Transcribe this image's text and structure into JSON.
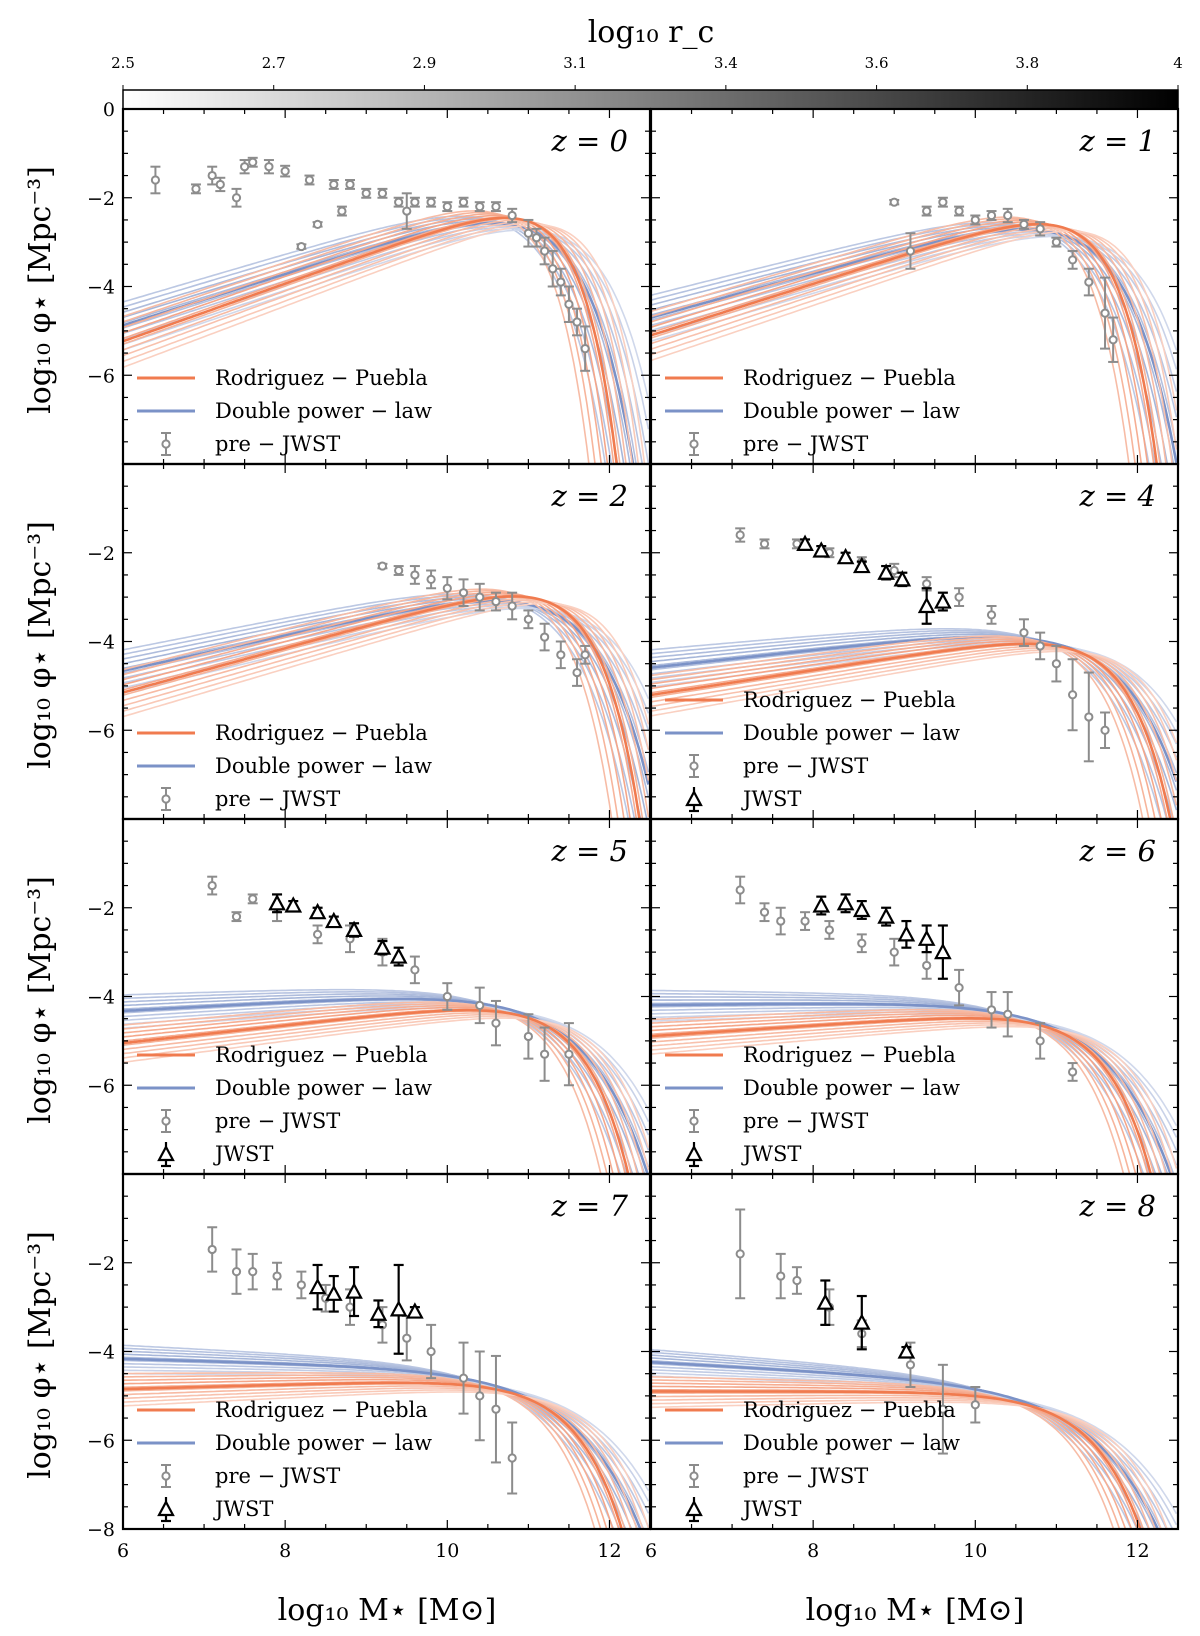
{
  "figure": {
    "colorbar": {
      "label": "log₁₀ r_c",
      "min": 2.5,
      "max": 4.0,
      "ticks": [
        "2.5",
        "2.7",
        "2.9",
        "3.1",
        "3.4",
        "3.6",
        "3.8",
        "4"
      ],
      "tick_values": [
        2.5,
        2.7,
        2.9,
        3.1,
        3.4,
        3.6,
        3.8,
        4.0
      ],
      "gradient": [
        "#ffffff",
        "#000000"
      ]
    },
    "colors": {
      "rodriguez_puebla": "#f07b4f",
      "double_power_law": "#7b92c7",
      "pre_jwst": "#8c8c8c",
      "jwst": "#000000"
    },
    "xlabel": "log₁₀ M⋆ [M⊙]",
    "ylabel": "log₁₀ φ⋆ [Mpc⁻³]",
    "xlim": [
      6,
      12.5
    ],
    "ylim": [
      -8,
      0
    ],
    "x_ticks": [
      "6",
      "8",
      "10",
      "12"
    ],
    "y_ticks_top": [
      "0",
      "−2",
      "−4",
      "−6"
    ],
    "y_ticks": [
      "−2",
      "−4",
      "−6"
    ],
    "y_ticks_bottom": [
      "−2",
      "−4",
      "−6",
      "−8"
    ],
    "legend": {
      "rp": "Rodriguez − Puebla",
      "dpl": "Double power − law",
      "pre": "pre − JWST",
      "jwst": "JWST"
    }
  },
  "chart_data": [
    {
      "type": "line",
      "redshift_label": "z = 0",
      "z": 0,
      "legend_entries": [
        "Rodriguez − Puebla",
        "Double power − law",
        "pre − JWST"
      ],
      "rp_model": {
        "alpha": -0.35,
        "log_mstar": 10.9,
        "log_phi": -2.05,
        "beta": 1.0
      },
      "dpl_model": {
        "alpha": -0.42,
        "log_mstar": 10.7,
        "log_phi": -2.15,
        "beta": 0.75
      },
      "pre_jwst": [
        [
          6.4,
          -1.6,
          0.3
        ],
        [
          6.9,
          -1.8,
          0.1
        ],
        [
          7.1,
          -1.5,
          0.2
        ],
        [
          7.2,
          -1.7,
          0.15
        ],
        [
          7.4,
          -2.0,
          0.2
        ],
        [
          7.5,
          -1.3,
          0.15
        ],
        [
          7.6,
          -1.2,
          0.1
        ],
        [
          7.8,
          -1.3,
          0.15
        ],
        [
          8.0,
          -1.4,
          0.12
        ],
        [
          8.2,
          -3.1,
          0.05
        ],
        [
          8.3,
          -1.6,
          0.1
        ],
        [
          8.4,
          -2.6,
          0.05
        ],
        [
          8.6,
          -1.7,
          0.1
        ],
        [
          8.7,
          -2.3,
          0.1
        ],
        [
          8.8,
          -1.7,
          0.1
        ],
        [
          9.0,
          -1.9,
          0.1
        ],
        [
          9.2,
          -1.9,
          0.1
        ],
        [
          9.4,
          -2.1,
          0.1
        ],
        [
          9.5,
          -2.3,
          0.4
        ],
        [
          9.6,
          -2.1,
          0.1
        ],
        [
          9.8,
          -2.1,
          0.1
        ],
        [
          10.0,
          -2.2,
          0.1
        ],
        [
          10.2,
          -2.1,
          0.1
        ],
        [
          10.4,
          -2.2,
          0.1
        ],
        [
          10.6,
          -2.2,
          0.1
        ],
        [
          10.8,
          -2.4,
          0.15
        ],
        [
          11.0,
          -2.8,
          0.3
        ],
        [
          11.1,
          -2.9,
          0.2
        ],
        [
          11.2,
          -3.2,
          0.3
        ],
        [
          11.3,
          -3.6,
          0.4
        ],
        [
          11.4,
          -3.9,
          0.3
        ],
        [
          11.5,
          -4.4,
          0.4
        ],
        [
          11.6,
          -4.8,
          0.3
        ],
        [
          11.7,
          -5.4,
          0.5
        ]
      ]
    },
    {
      "type": "line",
      "redshift_label": "z = 1",
      "z": 1,
      "legend_entries": [
        "Rodriguez − Puebla",
        "Double power − law",
        "pre − JWST"
      ],
      "rp_model": {
        "alpha": -0.42,
        "log_mstar": 11.0,
        "log_phi": -2.2,
        "beta": 0.95
      },
      "dpl_model": {
        "alpha": -0.5,
        "log_mstar": 10.8,
        "log_phi": -2.3,
        "beta": 0.7
      },
      "pre_jwst": [
        [
          9.0,
          -2.1,
          0.05
        ],
        [
          9.2,
          -3.2,
          0.4
        ],
        [
          9.4,
          -2.3,
          0.1
        ],
        [
          9.6,
          -2.1,
          0.1
        ],
        [
          9.8,
          -2.3,
          0.1
        ],
        [
          10.0,
          -2.5,
          0.1
        ],
        [
          10.2,
          -2.4,
          0.1
        ],
        [
          10.4,
          -2.4,
          0.15
        ],
        [
          10.6,
          -2.6,
          0.1
        ],
        [
          10.8,
          -2.7,
          0.15
        ],
        [
          11.0,
          -3.0,
          0.1
        ],
        [
          11.2,
          -3.4,
          0.2
        ],
        [
          11.4,
          -3.9,
          0.3
        ],
        [
          11.6,
          -4.6,
          0.8
        ],
        [
          11.7,
          -5.2,
          0.5
        ]
      ]
    },
    {
      "type": "line",
      "redshift_label": "z = 2",
      "z": 2,
      "legend_entries": [
        "Rodriguez − Puebla",
        "Double power − law",
        "pre − JWST"
      ],
      "rp_model": {
        "alpha": -0.5,
        "log_mstar": 11.1,
        "log_phi": -2.6,
        "beta": 0.9
      },
      "dpl_model": {
        "alpha": -0.6,
        "log_mstar": 10.9,
        "log_phi": -2.7,
        "beta": 0.68
      },
      "pre_jwst": [
        [
          9.2,
          -2.3,
          0.05
        ],
        [
          9.4,
          -2.4,
          0.1
        ],
        [
          9.6,
          -2.5,
          0.2
        ],
        [
          9.8,
          -2.6,
          0.2
        ],
        [
          10.0,
          -2.8,
          0.25
        ],
        [
          10.2,
          -2.9,
          0.3
        ],
        [
          10.4,
          -3.0,
          0.3
        ],
        [
          10.6,
          -3.1,
          0.2
        ],
        [
          10.8,
          -3.2,
          0.3
        ],
        [
          11.0,
          -3.5,
          0.2
        ],
        [
          11.2,
          -3.9,
          0.3
        ],
        [
          11.4,
          -4.3,
          0.3
        ],
        [
          11.6,
          -4.7,
          0.3
        ],
        [
          11.7,
          -4.3,
          0.2
        ]
      ]
    },
    {
      "type": "line",
      "redshift_label": "z = 4",
      "z": 4,
      "legend_entries": [
        "Rodriguez − Puebla",
        "Double power − law",
        "pre − JWST",
        "JWST"
      ],
      "rp_model": {
        "alpha": -0.72,
        "log_mstar": 11.2,
        "log_phi": -3.75,
        "beta": 0.85
      },
      "dpl_model": {
        "alpha": -0.8,
        "log_mstar": 10.95,
        "log_phi": -3.6,
        "beta": 0.62
      },
      "pre_jwst": [
        [
          7.1,
          -1.6,
          0.15
        ],
        [
          7.4,
          -1.8,
          0.1
        ],
        [
          7.8,
          -1.8,
          0.1
        ],
        [
          8.2,
          -2.0,
          0.1
        ],
        [
          8.6,
          -2.2,
          0.1
        ],
        [
          9.0,
          -2.4,
          0.15
        ],
        [
          9.4,
          -2.7,
          0.15
        ],
        [
          9.8,
          -3.0,
          0.2
        ],
        [
          10.2,
          -3.4,
          0.2
        ],
        [
          10.6,
          -3.8,
          0.3
        ],
        [
          10.8,
          -4.1,
          0.3
        ],
        [
          11.0,
          -4.5,
          0.4
        ],
        [
          11.2,
          -5.2,
          0.8
        ],
        [
          11.4,
          -5.7,
          1.0
        ],
        [
          11.6,
          -6.0,
          0.4
        ]
      ],
      "jwst": [
        [
          7.9,
          -1.8,
          0.1
        ],
        [
          8.1,
          -1.95,
          0.1
        ],
        [
          8.4,
          -2.1,
          0.1
        ],
        [
          8.6,
          -2.3,
          0.1
        ],
        [
          8.9,
          -2.45,
          0.15
        ],
        [
          9.1,
          -2.6,
          0.15
        ],
        [
          9.4,
          -3.2,
          0.4
        ],
        [
          9.6,
          -3.1,
          0.2
        ]
      ]
    },
    {
      "type": "line",
      "redshift_label": "z = 5",
      "z": 5,
      "legend_entries": [
        "Rodriguez − Puebla",
        "Double power − law",
        "pre − JWST",
        "JWST"
      ],
      "rp_model": {
        "alpha": -0.8,
        "log_mstar": 11.0,
        "log_phi": -4.05,
        "beta": 0.8
      },
      "dpl_model": {
        "alpha": -0.9,
        "log_mstar": 10.75,
        "log_phi": -3.85,
        "beta": 0.58
      },
      "pre_jwst": [
        [
          7.1,
          -1.5,
          0.2
        ],
        [
          7.4,
          -2.2,
          0.1
        ],
        [
          7.6,
          -1.8,
          0.1
        ],
        [
          7.9,
          -2.0,
          0.3
        ],
        [
          8.4,
          -2.6,
          0.2
        ],
        [
          8.8,
          -2.7,
          0.3
        ],
        [
          9.2,
          -3.0,
          0.3
        ],
        [
          9.6,
          -3.4,
          0.3
        ],
        [
          10.0,
          -4.0,
          0.3
        ],
        [
          10.4,
          -4.2,
          0.4
        ],
        [
          10.6,
          -4.6,
          0.5
        ],
        [
          11.0,
          -4.9,
          0.5
        ],
        [
          11.2,
          -5.3,
          0.6
        ],
        [
          11.5,
          -5.3,
          0.7
        ]
      ],
      "jwst": [
        [
          7.9,
          -1.9,
          0.2
        ],
        [
          8.1,
          -1.95,
          0.1
        ],
        [
          8.4,
          -2.1,
          0.1
        ],
        [
          8.6,
          -2.3,
          0.1
        ],
        [
          8.85,
          -2.5,
          0.15
        ],
        [
          9.2,
          -2.9,
          0.15
        ],
        [
          9.4,
          -3.1,
          0.2
        ]
      ]
    },
    {
      "type": "line",
      "redshift_label": "z = 6",
      "z": 6,
      "legend_entries": [
        "Rodriguez − Puebla",
        "Double power − law",
        "pre − JWST",
        "JWST"
      ],
      "rp_model": {
        "alpha": -0.88,
        "log_mstar": 10.95,
        "log_phi": -4.3,
        "beta": 0.78
      },
      "dpl_model": {
        "alpha": -0.98,
        "log_mstar": 10.7,
        "log_phi": -4.1,
        "beta": 0.56
      },
      "pre_jwst": [
        [
          7.1,
          -1.6,
          0.3
        ],
        [
          7.4,
          -2.1,
          0.2
        ],
        [
          7.6,
          -2.3,
          0.3
        ],
        [
          7.9,
          -2.3,
          0.2
        ],
        [
          8.2,
          -2.5,
          0.2
        ],
        [
          8.6,
          -2.8,
          0.2
        ],
        [
          9.0,
          -3.0,
          0.3
        ],
        [
          9.4,
          -3.3,
          0.3
        ],
        [
          9.8,
          -3.8,
          0.4
        ],
        [
          10.2,
          -4.3,
          0.4
        ],
        [
          10.4,
          -4.4,
          0.5
        ],
        [
          10.8,
          -5.0,
          0.4
        ],
        [
          11.2,
          -5.7,
          0.2
        ]
      ],
      "jwst": [
        [
          8.1,
          -1.95,
          0.2
        ],
        [
          8.4,
          -1.9,
          0.2
        ],
        [
          8.6,
          -2.05,
          0.2
        ],
        [
          8.9,
          -2.2,
          0.2
        ],
        [
          9.15,
          -2.6,
          0.3
        ],
        [
          9.4,
          -2.7,
          0.3
        ],
        [
          9.6,
          -3.0,
          0.6
        ]
      ]
    },
    {
      "type": "line",
      "redshift_label": "z = 7",
      "z": 7,
      "legend_entries": [
        "Rodriguez − Puebla",
        "Double power − law",
        "pre − JWST",
        "JWST"
      ],
      "rp_model": {
        "alpha": -0.95,
        "log_mstar": 10.95,
        "log_phi": -4.6,
        "beta": 0.75
      },
      "dpl_model": {
        "alpha": -1.05,
        "log_mstar": 10.7,
        "log_phi": -4.4,
        "beta": 0.54
      },
      "pre_jwst": [
        [
          7.1,
          -1.7,
          0.5
        ],
        [
          7.4,
          -2.2,
          0.5
        ],
        [
          7.6,
          -2.2,
          0.4
        ],
        [
          7.9,
          -2.3,
          0.3
        ],
        [
          8.2,
          -2.5,
          0.3
        ],
        [
          8.5,
          -2.8,
          0.3
        ],
        [
          8.8,
          -3.0,
          0.4
        ],
        [
          9.2,
          -3.4,
          0.4
        ],
        [
          9.5,
          -3.7,
          0.5
        ],
        [
          9.8,
          -4.0,
          0.6
        ],
        [
          10.2,
          -4.6,
          0.8
        ],
        [
          10.4,
          -5.0,
          1.0
        ],
        [
          10.6,
          -5.3,
          1.2
        ],
        [
          10.8,
          -6.4,
          0.8
        ]
      ],
      "jwst": [
        [
          8.4,
          -2.55,
          0.5
        ],
        [
          8.6,
          -2.7,
          0.4
        ],
        [
          8.85,
          -2.65,
          0.55
        ],
        [
          9.15,
          -3.15,
          0.3
        ],
        [
          9.4,
          -3.05,
          1.0
        ],
        [
          9.6,
          -3.1,
          0.1
        ]
      ]
    },
    {
      "type": "line",
      "redshift_label": "z = 8",
      "z": 8,
      "legend_entries": [
        "Rodriguez − Puebla",
        "Double power − law",
        "pre − JWST",
        "JWST"
      ],
      "rp_model": {
        "alpha": -1.0,
        "log_mstar": 10.85,
        "log_phi": -4.9,
        "beta": 0.72
      },
      "dpl_model": {
        "alpha": -1.1,
        "log_mstar": 10.6,
        "log_phi": -4.7,
        "beta": 0.52
      },
      "pre_jwst": [
        [
          7.1,
          -1.8,
          1.0
        ],
        [
          7.6,
          -2.3,
          0.5
        ],
        [
          7.8,
          -2.4,
          0.3
        ],
        [
          8.2,
          -3.0,
          0.4
        ],
        [
          8.6,
          -3.6,
          0.3
        ],
        [
          9.2,
          -4.3,
          0.5
        ],
        [
          9.6,
          -5.3,
          1.0
        ],
        [
          10.0,
          -5.2,
          0.4
        ]
      ],
      "jwst": [
        [
          8.15,
          -2.9,
          0.5
        ],
        [
          8.6,
          -3.35,
          0.6
        ],
        [
          9.15,
          -4.0,
          0.1
        ]
      ]
    }
  ]
}
